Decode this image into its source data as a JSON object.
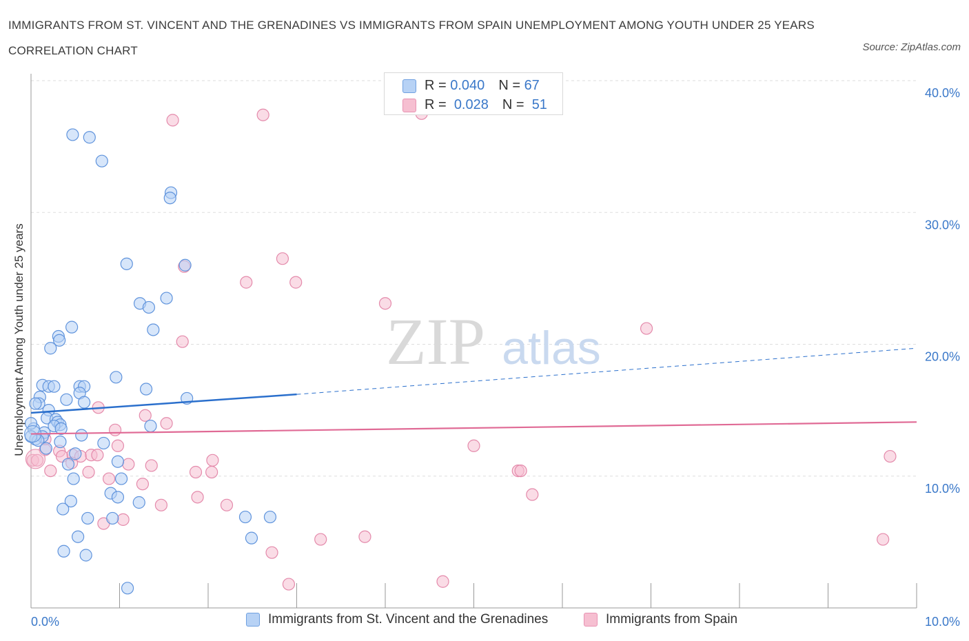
{
  "title": "IMMIGRANTS FROM ST. VINCENT AND THE GRENADINES VS IMMIGRANTS FROM SPAIN UNEMPLOYMENT AMONG YOUTH UNDER 25 YEARS CORRELATION CHART",
  "source": "Source: ZipAtlas.com",
  "watermark": {
    "zip": "ZIP",
    "atlas": "atlas"
  },
  "colors": {
    "blue": "#4a86d8",
    "blue_fill": "#b7d2f5",
    "blue_line": "#2a6fcc",
    "pink": "#e0608e",
    "pink_fill": "#f6bfd1",
    "pink_line": "#e06a95",
    "axis_label": "#3a78c9",
    "grid": "#dddddd"
  },
  "stats_box": {
    "rows": [
      {
        "r_label": "R =",
        "r_value": "0.040",
        "n_label": "N =",
        "n_value": "67"
      },
      {
        "r_label": "R =",
        "r_value": "0.028",
        "n_label": "N =",
        "n_value": "51"
      }
    ]
  },
  "legend": [
    {
      "label": "Immigrants from St. Vincent and the Grenadines"
    },
    {
      "label": "Immigrants from Spain"
    }
  ],
  "chart_data": {
    "type": "scatter",
    "title": "IMMIGRANTS FROM ST. VINCENT AND THE GRENADINES VS IMMIGRANTS FROM SPAIN UNEMPLOYMENT AMONG YOUTH UNDER 25 YEARS CORRELATION CHART",
    "xlabel": "",
    "ylabel": "Unemployment Among Youth under 25 years",
    "xlim": [
      0,
      10
    ],
    "ylim": [
      0,
      40
    ],
    "x_tick_labels": [
      "0.0%",
      "10.0%"
    ],
    "y_tick_labels": [
      "10.0%",
      "20.0%",
      "30.0%",
      "40.0%"
    ],
    "y_ticks": [
      10,
      20,
      30,
      40
    ],
    "grid": true,
    "legend_position": "bottom",
    "series": [
      {
        "name": "Immigrants from St. Vincent and the Grenadines",
        "color": "#4a86d8",
        "trend": {
          "x0": 0.0,
          "y0": 14.8,
          "x1": 3.0,
          "y1": 16.2,
          "x_dash_end": 10.0,
          "y_dash_end": 19.7
        },
        "points": [
          [
            0.47,
            35.9
          ],
          [
            0.66,
            35.7
          ],
          [
            0.8,
            33.9
          ],
          [
            1.58,
            31.5
          ],
          [
            1.57,
            31.1
          ],
          [
            1.08,
            26.1
          ],
          [
            1.74,
            26.0
          ],
          [
            1.23,
            23.1
          ],
          [
            1.53,
            23.5
          ],
          [
            1.33,
            22.8
          ],
          [
            1.38,
            21.1
          ],
          [
            0.46,
            21.3
          ],
          [
            0.31,
            20.6
          ],
          [
            0.32,
            20.3
          ],
          [
            0.22,
            19.7
          ],
          [
            0.96,
            17.5
          ],
          [
            0.13,
            16.9
          ],
          [
            0.2,
            16.8
          ],
          [
            0.26,
            16.8
          ],
          [
            0.55,
            16.8
          ],
          [
            0.6,
            16.8
          ],
          [
            1.3,
            16.6
          ],
          [
            0.55,
            16.3
          ],
          [
            0.1,
            16.0
          ],
          [
            1.76,
            15.9
          ],
          [
            0.4,
            15.8
          ],
          [
            0.6,
            15.6
          ],
          [
            0.09,
            15.5
          ],
          [
            0.2,
            15.0
          ],
          [
            0.18,
            14.4
          ],
          [
            0.28,
            14.3
          ],
          [
            0.3,
            14.1
          ],
          [
            0.33,
            13.9
          ],
          [
            0.26,
            13.8
          ],
          [
            0.34,
            13.6
          ],
          [
            1.35,
            13.8
          ],
          [
            0.03,
            13.6
          ],
          [
            0.15,
            13.3
          ],
          [
            0.0,
            14.0
          ],
          [
            0.13,
            13.0
          ],
          [
            0.57,
            13.1
          ],
          [
            0.05,
            12.8
          ],
          [
            0.08,
            12.7
          ],
          [
            0.33,
            12.6
          ],
          [
            0.82,
            12.5
          ],
          [
            0.17,
            12.1
          ],
          [
            0.5,
            11.7
          ],
          [
            0.98,
            11.1
          ],
          [
            0.42,
            10.9
          ],
          [
            0.48,
            9.8
          ],
          [
            1.02,
            9.8
          ],
          [
            0.9,
            8.7
          ],
          [
            0.98,
            8.4
          ],
          [
            0.45,
            8.1
          ],
          [
            1.22,
            8.0
          ],
          [
            0.36,
            7.5
          ],
          [
            0.64,
            6.8
          ],
          [
            0.92,
            6.8
          ],
          [
            2.42,
            6.9
          ],
          [
            2.7,
            6.9
          ],
          [
            0.53,
            5.4
          ],
          [
            2.49,
            5.3
          ],
          [
            0.37,
            4.3
          ],
          [
            0.62,
            4.0
          ],
          [
            1.09,
            1.5
          ],
          [
            0.0,
            13.0
          ],
          [
            0.05,
            15.5
          ]
        ]
      },
      {
        "name": "Immigrants from Spain",
        "color": "#e0608e",
        "trend": {
          "x0": 0.0,
          "y0": 13.2,
          "x1": 10.0,
          "y1": 14.1
        },
        "points": [
          [
            2.62,
            37.4
          ],
          [
            4.41,
            37.5
          ],
          [
            1.6,
            37.0
          ],
          [
            1.73,
            25.9
          ],
          [
            2.84,
            26.5
          ],
          [
            2.43,
            24.7
          ],
          [
            2.99,
            24.7
          ],
          [
            4.0,
            23.1
          ],
          [
            6.95,
            21.2
          ],
          [
            1.71,
            20.2
          ],
          [
            0.76,
            15.2
          ],
          [
            1.29,
            14.6
          ],
          [
            1.53,
            14.0
          ],
          [
            0.95,
            13.5
          ],
          [
            0.16,
            12.8
          ],
          [
            0.98,
            12.3
          ],
          [
            0.16,
            12.0
          ],
          [
            0.32,
            11.9
          ],
          [
            0.47,
            11.6
          ],
          [
            0.56,
            11.5
          ],
          [
            0.68,
            11.6
          ],
          [
            0.75,
            11.6
          ],
          [
            0.35,
            11.5
          ],
          [
            0.02,
            11.2
          ],
          [
            0.07,
            11.2
          ],
          [
            2.05,
            11.2
          ],
          [
            5.0,
            12.3
          ],
          [
            9.7,
            11.5
          ],
          [
            0.46,
            11.0
          ],
          [
            1.1,
            10.9
          ],
          [
            1.36,
            10.8
          ],
          [
            0.22,
            10.4
          ],
          [
            1.86,
            10.3
          ],
          [
            2.04,
            10.3
          ],
          [
            5.5,
            10.4
          ],
          [
            5.53,
            10.4
          ],
          [
            0.65,
            10.3
          ],
          [
            0.88,
            9.8
          ],
          [
            1.26,
            9.4
          ],
          [
            5.66,
            8.6
          ],
          [
            1.88,
            8.4
          ],
          [
            2.21,
            7.8
          ],
          [
            1.47,
            7.8
          ],
          [
            1.04,
            6.7
          ],
          [
            0.82,
            6.4
          ],
          [
            2.72,
            4.2
          ],
          [
            3.27,
            5.2
          ],
          [
            3.77,
            5.4
          ],
          [
            9.62,
            5.2
          ],
          [
            2.91,
            1.8
          ],
          [
            4.65,
            2.0
          ]
        ]
      }
    ]
  }
}
